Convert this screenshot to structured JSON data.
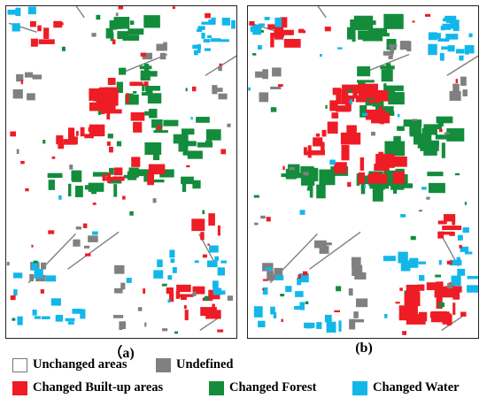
{
  "panels": [
    {
      "id": "a",
      "caption": "（a)"
    },
    {
      "id": "b",
      "caption": "(b)"
    }
  ],
  "legend": [
    {
      "key": "unchanged",
      "label": "Unchanged areas",
      "color": "#ffffff",
      "outline": true
    },
    {
      "key": "undefined",
      "label": "Undefined",
      "color": "#808080"
    },
    {
      "key": "built",
      "label": "Changed Built-up areas",
      "color": "#ee1c25"
    },
    {
      "key": "forest",
      "label": "Changed Forest",
      "color": "#138c3c"
    },
    {
      "key": "water",
      "label": "Changed Water",
      "color": "#12b7ea"
    }
  ]
}
